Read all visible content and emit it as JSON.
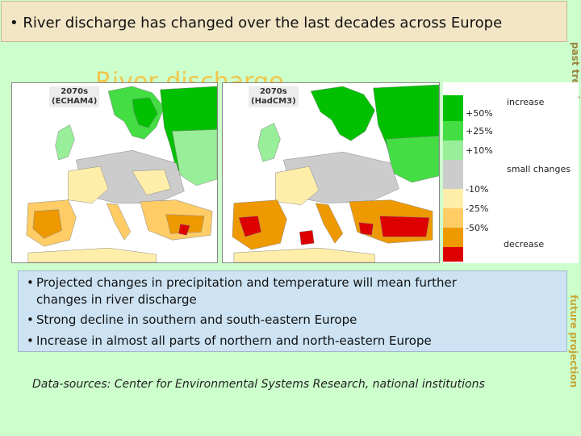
{
  "slide": {
    "title": "River discharge has changed over the last decades across Europe",
    "title_bullet": "•",
    "side_label_top": "past trends",
    "side_label_bottom": "future projection",
    "ghost_title": "River discharge"
  },
  "maps": [
    {
      "label_line1": "2070s",
      "label_line2": "(ECHAM4)"
    },
    {
      "label_line1": "2070s",
      "label_line2": "(HadCM3)"
    }
  ],
  "legend": {
    "ticks": [
      "+50%",
      "+25%",
      "+10%",
      "-10%",
      "-25%",
      "-50%"
    ],
    "increase_label": "increase",
    "small_changes_label": "small changes",
    "decrease_label": "decrease",
    "colors": [
      "#00c000",
      "#44dd44",
      "#99ee99",
      "#cccccc",
      "#ffeeaa",
      "#ffcc66",
      "#ee9900",
      "#dd0000"
    ]
  },
  "bullets": [
    "Projected changes in precipitation and temperature will mean further",
    "changes in river discharge",
    "Strong decline in southern and south-eastern Europe",
    "Increase in almost all parts of northern and north-eastern Europe"
  ],
  "source": "Data-sources: Center for Environmental Systems Research, national institutions"
}
